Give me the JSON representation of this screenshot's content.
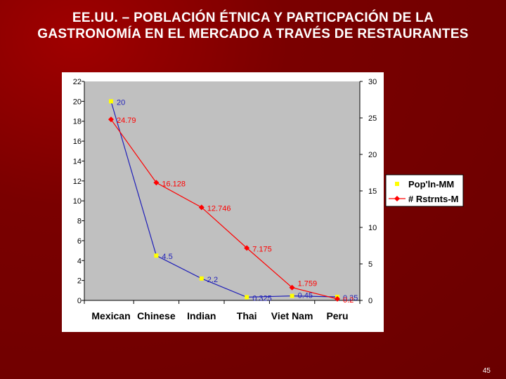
{
  "title_line1": "EE.UU. – POBLACIÓN ÉTNICA Y PARTICPACIÓN DE LA",
  "title_line2": "GASTRONOMÍA EN EL MERCADO A TRAVÉS DE RESTAURANTES",
  "page_number": "45",
  "chart_data": {
    "type": "line",
    "title": "EE.UU. – POBLACIÓN ÉTNICA Y PARTICPACIÓN DE LA GASTRONOMÍA EN EL MERCADO A TRAVÉS DE RESTAURANTES",
    "categories": [
      "Mexican",
      "Chinese",
      "Indian",
      "Thai",
      "Viet Nam",
      "Peru"
    ],
    "series": [
      {
        "name": "Pop'ln-MM",
        "axis": "left",
        "color": "#1f1fb8",
        "marker": "square",
        "marker_color": "#ffff00",
        "values": [
          20,
          4.5,
          2.2,
          0.325,
          0.45,
          0.35
        ],
        "labels": [
          "20",
          "4.5",
          "2.2",
          "0.325",
          "0.45",
          "0.35"
        ]
      },
      {
        "name": "# Rstrnts-M",
        "axis": "right",
        "color": "#ff0000",
        "marker": "diamond",
        "marker_color": "#ff0000",
        "values": [
          24.79,
          16.128,
          12.746,
          7.175,
          1.759,
          0.2
        ],
        "labels": [
          "24.79",
          "16.128",
          "12.746",
          "7.175",
          "1.759",
          "0.2"
        ]
      }
    ],
    "ylim_left": [
      0,
      22
    ],
    "yticks_left": [
      0,
      2,
      4,
      6,
      8,
      10,
      12,
      14,
      16,
      18,
      20,
      22
    ],
    "ylim_right": [
      0,
      30
    ],
    "yticks_right": [
      0,
      5,
      10,
      15,
      20,
      25,
      30
    ],
    "xlabel": "",
    "ylabel": "",
    "grid": false,
    "legend_placement": "right"
  }
}
